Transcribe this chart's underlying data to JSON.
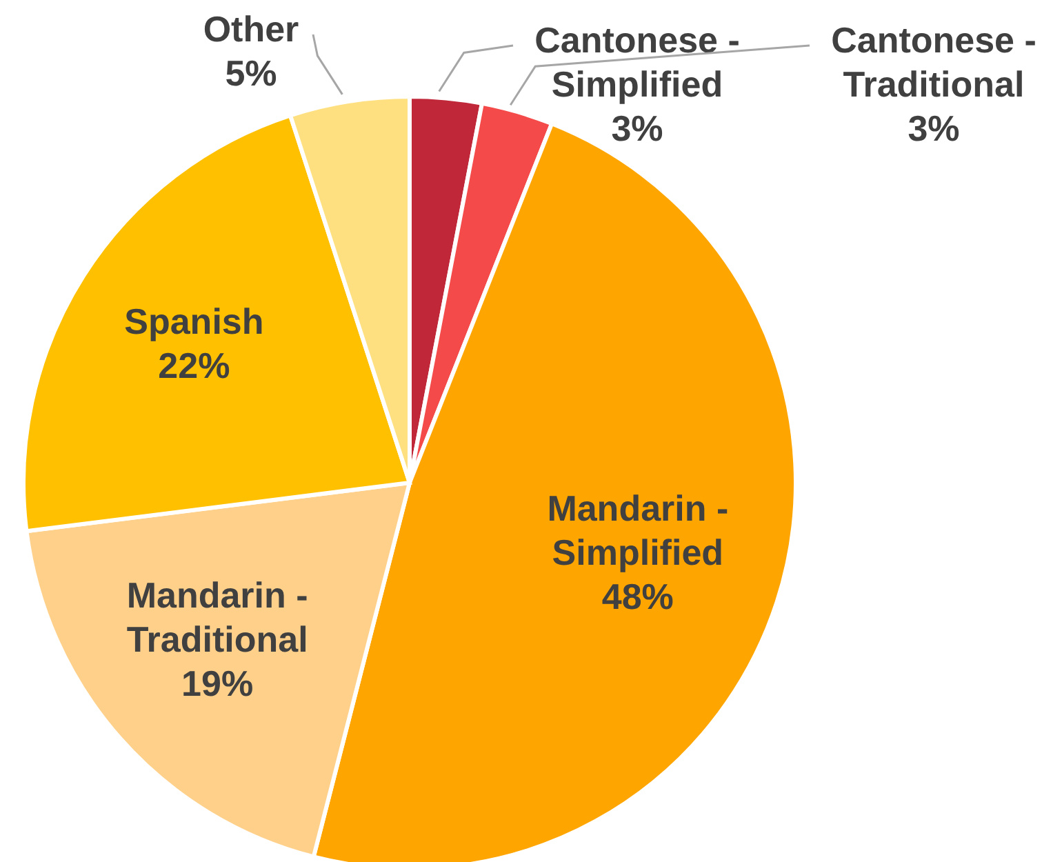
{
  "chart_data": {
    "type": "pie",
    "categories": [
      "Cantonese - Simplified",
      "Cantonese - Traditional",
      "Mandarin - Simplified",
      "Mandarin - Traditional",
      "Spanish",
      "Other"
    ],
    "values": [
      3,
      3,
      48,
      19,
      22,
      5
    ],
    "value_labels": [
      "3%",
      "3%",
      "48%",
      "19%",
      "22%",
      "5%"
    ],
    "colors": [
      "#c0283a",
      "#f44a4a",
      "#ffa500",
      "#ffd08a",
      "#ffc000",
      "#ffe080"
    ]
  }
}
